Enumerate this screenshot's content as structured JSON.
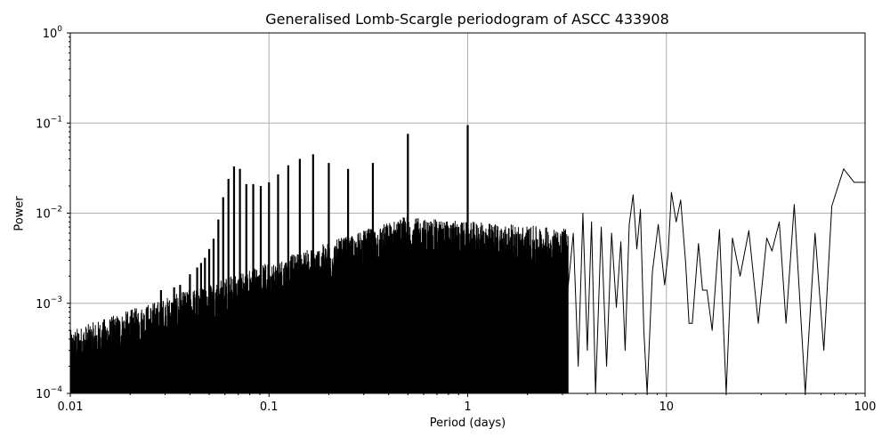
{
  "chart_data": {
    "type": "line",
    "title": "Generalised Lomb-Scargle periodogram of ASCC 433908",
    "xlabel": "Period (days)",
    "ylabel": "Power",
    "xscale": "log",
    "yscale": "log",
    "xlim": [
      0.01,
      100
    ],
    "ylim": [
      0.0001,
      1
    ],
    "grid": true,
    "x_ticks": [
      "0.01",
      "0.1",
      "1",
      "10",
      "100"
    ],
    "y_ticks": [
      "10^-4",
      "10^-3",
      "10^-2",
      "10^-1",
      "10^0"
    ],
    "line_color": "#000000",
    "grid_color": "#b0b0b0",
    "harmonic_peaks": [
      {
        "period": 0.0286,
        "power": 0.0014
      },
      {
        "period": 0.0333,
        "power": 0.0015
      },
      {
        "period": 0.0357,
        "power": 0.0016
      },
      {
        "period": 0.04,
        "power": 0.0021
      },
      {
        "period": 0.0435,
        "power": 0.0025
      },
      {
        "period": 0.0455,
        "power": 0.0028
      },
      {
        "period": 0.0476,
        "power": 0.0032
      },
      {
        "period": 0.05,
        "power": 0.004
      },
      {
        "period": 0.0526,
        "power": 0.0052
      },
      {
        "period": 0.0556,
        "power": 0.0085
      },
      {
        "period": 0.0588,
        "power": 0.015
      },
      {
        "period": 0.0625,
        "power": 0.024
      },
      {
        "period": 0.0667,
        "power": 0.033
      },
      {
        "period": 0.0714,
        "power": 0.031
      },
      {
        "period": 0.0769,
        "power": 0.021
      },
      {
        "period": 0.0833,
        "power": 0.021
      },
      {
        "period": 0.0909,
        "power": 0.02
      },
      {
        "period": 0.1,
        "power": 0.022
      },
      {
        "period": 0.1111,
        "power": 0.027
      },
      {
        "period": 0.125,
        "power": 0.034
      },
      {
        "period": 0.1429,
        "power": 0.04
      },
      {
        "period": 0.1667,
        "power": 0.045
      },
      {
        "period": 0.2,
        "power": 0.036
      },
      {
        "period": 0.25,
        "power": 0.031
      },
      {
        "period": 0.3333,
        "power": 0.036
      },
      {
        "period": 0.5,
        "power": 0.076
      },
      {
        "period": 1.0,
        "power": 0.095
      }
    ],
    "long_period_curve": [
      [
        3.2,
        0.0015
      ],
      [
        3.4,
        0.006
      ],
      [
        3.6,
        0.0002
      ],
      [
        3.8,
        0.01
      ],
      [
        4.0,
        0.0003
      ],
      [
        4.2,
        0.008
      ],
      [
        4.4,
        0.0001
      ],
      [
        4.7,
        0.007
      ],
      [
        5.0,
        0.0002
      ],
      [
        5.3,
        0.006
      ],
      [
        5.6,
        0.0009
      ],
      [
        5.9,
        0.0048
      ],
      [
        6.2,
        0.0003
      ],
      [
        6.5,
        0.0075
      ],
      [
        6.8,
        0.016
      ],
      [
        7.1,
        0.004
      ],
      [
        7.4,
        0.011
      ],
      [
        7.7,
        0.0005
      ],
      [
        8.0,
        0.0001
      ],
      [
        8.5,
        0.0022
      ],
      [
        9.1,
        0.0075
      ],
      [
        9.8,
        0.0016
      ],
      [
        10.2,
        0.0035
      ],
      [
        10.6,
        0.017
      ],
      [
        11.2,
        0.008
      ],
      [
        11.8,
        0.014
      ],
      [
        12.5,
        0.0028
      ],
      [
        13.0,
        0.0006
      ],
      [
        13.5,
        0.0006
      ],
      [
        14.5,
        0.0046
      ],
      [
        15.2,
        0.0014
      ],
      [
        16.0,
        0.0014
      ],
      [
        17.0,
        0.0005
      ],
      [
        18.5,
        0.0066
      ],
      [
        20.0,
        0.0001
      ],
      [
        21.5,
        0.0053
      ],
      [
        23.5,
        0.002
      ],
      [
        26.0,
        0.0064
      ],
      [
        29.0,
        0.0006
      ],
      [
        32.0,
        0.0053
      ],
      [
        34.0,
        0.0038
      ],
      [
        37.0,
        0.008
      ],
      [
        40.0,
        0.0006
      ],
      [
        44.0,
        0.0125
      ],
      [
        50.0,
        0.0001
      ],
      [
        56.0,
        0.006
      ],
      [
        62.0,
        0.0003
      ],
      [
        68.0,
        0.012
      ],
      [
        78.0,
        0.031
      ],
      [
        88.0,
        0.022
      ],
      [
        100.0,
        0.022
      ]
    ]
  }
}
